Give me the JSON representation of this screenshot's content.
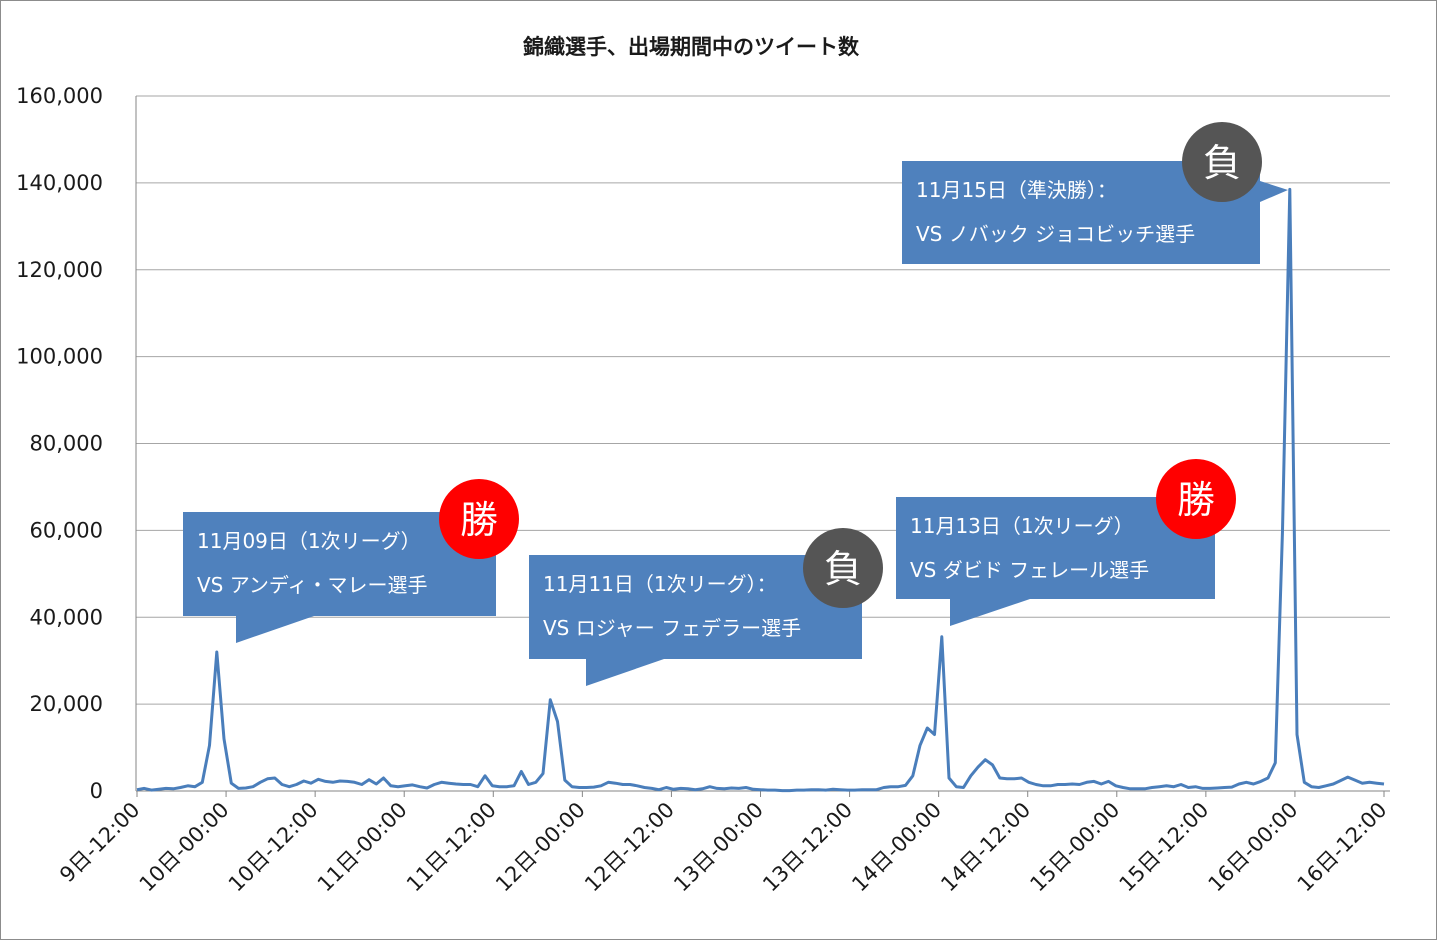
{
  "chart_data": {
    "type": "line",
    "title": "錦織選手、出場期間中のツイート数",
    "xlabel": "",
    "ylabel": "",
    "ylim": [
      0,
      160000
    ],
    "yticks": [
      "0",
      "20,000",
      "40,000",
      "60,000",
      "80,000",
      "100,000",
      "120,000",
      "140,000",
      "160,000"
    ],
    "xticks": [
      "9日-12:00",
      "10日-00:00",
      "10日-12:00",
      "11日-00:00",
      "11日-12:00",
      "12日-00:00",
      "12日-12:00",
      "13日-00:00",
      "13日-12:00",
      "14日-00:00",
      "14日-12:00",
      "15日-00:00",
      "15日-12:00",
      "16日-00:00",
      "16日-12:00"
    ],
    "grid": true,
    "legend": "none",
    "line_color": "#4a7ebb",
    "series": [
      {
        "values": [
          300,
          600,
          200,
          400,
          600,
          500,
          800,
          1200,
          1000,
          2000,
          10500,
          32000,
          12000,
          1800,
          600,
          700,
          1000,
          2000,
          2800,
          3000,
          1500,
          1000,
          1500,
          2300,
          1800,
          2700,
          2200,
          2000,
          2300,
          2200,
          2000,
          1500,
          2600,
          1600,
          3000,
          1200,
          1000,
          1200,
          1400,
          1000,
          700,
          1500,
          2000,
          1800,
          1600,
          1500,
          1500,
          1000,
          3500,
          1200,
          1000,
          1000,
          1200,
          4500,
          1500,
          2000,
          4000,
          21000,
          16000,
          2500,
          1000,
          800,
          800,
          900,
          1200,
          2000,
          1800,
          1500,
          1500,
          1200,
          800,
          600,
          300,
          800,
          400,
          600,
          500,
          300,
          500,
          1000,
          600,
          500,
          700,
          600,
          800,
          400,
          300,
          200,
          200,
          100,
          100,
          200,
          200,
          300,
          300,
          200,
          400,
          300,
          200,
          200,
          300,
          300,
          300,
          800,
          1000,
          1000,
          1300,
          3500,
          10500,
          14500,
          13000,
          35500,
          3000,
          1000,
          800,
          3500,
          5500,
          7200,
          6000,
          3000,
          2800,
          2800,
          3000,
          2000,
          1500,
          1200,
          1200,
          1500,
          1500,
          1600,
          1500,
          2000,
          2200,
          1600,
          2200,
          1200,
          800,
          500,
          500,
          500,
          800,
          1000,
          1200,
          1000,
          1500,
          800,
          1000,
          600,
          600,
          700,
          800,
          900,
          1600,
          2000,
          1600,
          2200,
          3000,
          6500,
          60000,
          138500,
          13000,
          2000,
          1000,
          800,
          1200,
          1600,
          2400,
          3200,
          2500,
          1800,
          2000,
          1800,
          1600
        ]
      }
    ],
    "annotations": [
      {
        "line1": "11月09日（1次リーグ）",
        "line2": "VS アンディ・マレー選手",
        "result": "勝",
        "result_color": "#ff0000"
      },
      {
        "line1": "11月11日（1次リーグ）：",
        "line2": "VS ロジャー フェデラー選手",
        "result": "負",
        "result_color": "#555555"
      },
      {
        "line1": "11月13日（1次リーグ）",
        "line2": "VS ダビド フェレール選手",
        "result": "勝",
        "result_color": "#ff0000"
      },
      {
        "line1": "11月15日（準決勝）：",
        "line2": "VS ノバック ジョコビッチ選手",
        "result": "負",
        "result_color": "#555555"
      }
    ],
    "callout_color": "#4f81bd"
  }
}
